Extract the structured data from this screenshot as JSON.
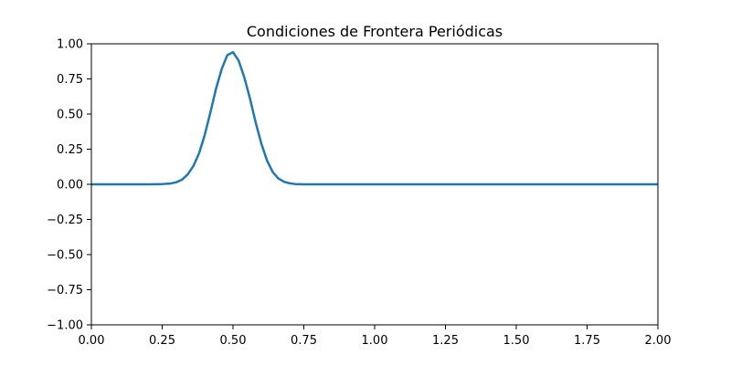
{
  "chart_data": {
    "type": "line",
    "title": "Condiciones de Frontera Periódicas",
    "xlabel": "",
    "ylabel": "",
    "xlim": [
      0.0,
      2.0
    ],
    "ylim": [
      -1.0,
      1.0
    ],
    "grid": false,
    "x_ticks": [
      0.0,
      0.25,
      0.5,
      0.75,
      1.0,
      1.25,
      1.5,
      1.75,
      2.0
    ],
    "x_tick_labels": [
      "0.00",
      "0.25",
      "0.50",
      "0.75",
      "1.00",
      "1.25",
      "1.50",
      "1.75",
      "2.00"
    ],
    "y_ticks": [
      -1.0,
      -0.75,
      -0.5,
      -0.25,
      0.0,
      0.25,
      0.5,
      0.75,
      1.0
    ],
    "y_tick_labels": [
      "−1.00",
      "−0.75",
      "−0.50",
      "−0.25",
      "0.00",
      "0.25",
      "0.50",
      "0.75",
      "1.00"
    ],
    "series": [
      {
        "color": "#1f77b4",
        "x": [
          0.0,
          0.1,
          0.2,
          0.25,
          0.28,
          0.3,
          0.32,
          0.34,
          0.36,
          0.38,
          0.4,
          0.42,
          0.44,
          0.46,
          0.48,
          0.5,
          0.52,
          0.54,
          0.56,
          0.58,
          0.6,
          0.62,
          0.64,
          0.66,
          0.68,
          0.7,
          0.72,
          0.75,
          0.8,
          1.0,
          1.25,
          1.5,
          1.75,
          2.0
        ],
        "y": [
          0.0,
          0.0,
          0.0,
          0.002,
          0.006,
          0.015,
          0.033,
          0.07,
          0.13,
          0.22,
          0.35,
          0.51,
          0.68,
          0.82,
          0.92,
          0.94,
          0.88,
          0.76,
          0.61,
          0.44,
          0.29,
          0.17,
          0.088,
          0.042,
          0.018,
          0.007,
          0.002,
          0.0,
          0.0,
          0.0,
          0.0,
          0.0,
          0.0,
          0.0
        ]
      }
    ]
  }
}
